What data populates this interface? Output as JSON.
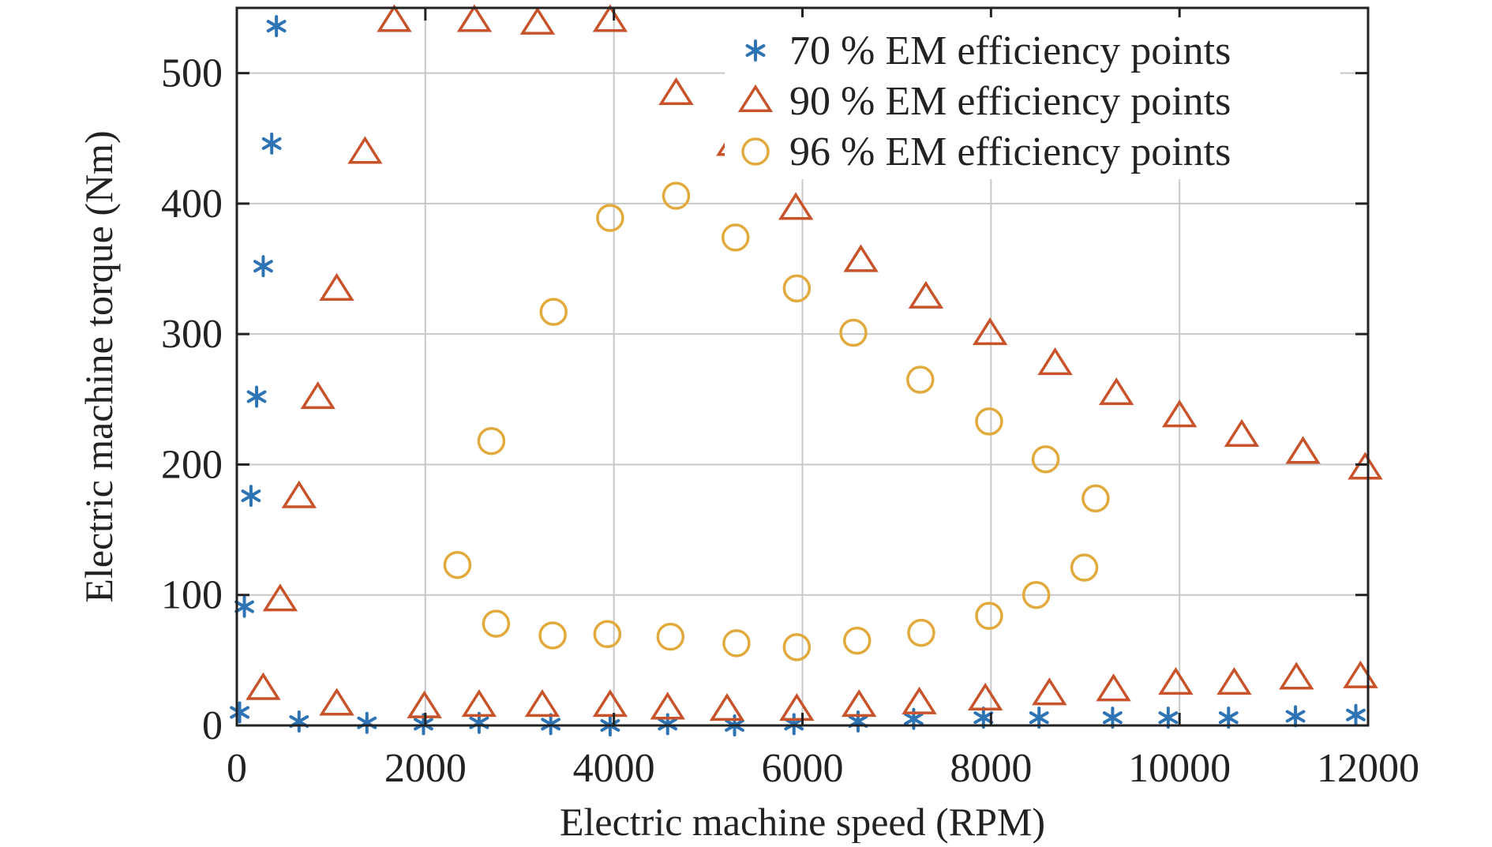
{
  "chart_data": {
    "type": "scatter",
    "xlabel": "Electric machine speed (RPM)",
    "ylabel": "Electric machine torque (Nm)",
    "xlim": [
      0,
      12000
    ],
    "ylim": [
      0,
      550
    ],
    "xticks": [
      0,
      2000,
      4000,
      6000,
      8000,
      10000,
      12000
    ],
    "yticks": [
      0,
      100,
      200,
      300,
      400,
      500
    ],
    "grid": true,
    "legend_position": "top-right",
    "series": [
      {
        "name": "70 % EM efficiency points",
        "marker": "asterisk",
        "color": "#2e74b5",
        "points": [
          [
            30,
            10
          ],
          [
            80,
            91
          ],
          [
            150,
            176
          ],
          [
            210,
            252
          ],
          [
            280,
            352
          ],
          [
            370,
            446
          ],
          [
            420,
            536
          ],
          [
            660,
            3
          ],
          [
            1380,
            2
          ],
          [
            1980,
            1
          ],
          [
            2570,
            2
          ],
          [
            3330,
            1
          ],
          [
            3960,
            0
          ],
          [
            4570,
            1
          ],
          [
            5280,
            0
          ],
          [
            5910,
            1
          ],
          [
            6590,
            3
          ],
          [
            7180,
            5
          ],
          [
            7920,
            6
          ],
          [
            8510,
            6
          ],
          [
            9290,
            6
          ],
          [
            9880,
            6
          ],
          [
            10520,
            6
          ],
          [
            11230,
            7
          ],
          [
            11870,
            8
          ]
        ]
      },
      {
        "name": "90 % EM efficiency points",
        "marker": "triangle",
        "color": "#c8532b",
        "points": [
          [
            280,
            28
          ],
          [
            460,
            96
          ],
          [
            660,
            175
          ],
          [
            860,
            251
          ],
          [
            1060,
            334
          ],
          [
            1360,
            439
          ],
          [
            1670,
            540
          ],
          [
            1060,
            16
          ],
          [
            1990,
            14
          ],
          [
            2570,
            15
          ],
          [
            3240,
            15
          ],
          [
            3960,
            15
          ],
          [
            4570,
            13
          ],
          [
            5200,
            12
          ],
          [
            5940,
            12
          ],
          [
            6600,
            15
          ],
          [
            7240,
            17
          ],
          [
            7940,
            20
          ],
          [
            8620,
            24
          ],
          [
            9300,
            27
          ],
          [
            9960,
            32
          ],
          [
            10580,
            32
          ],
          [
            11240,
            36
          ],
          [
            11920,
            37
          ],
          [
            2520,
            540
          ],
          [
            3190,
            538
          ],
          [
            3960,
            540
          ],
          [
            4660,
            484
          ],
          [
            5270,
            445
          ],
          [
            5930,
            396
          ],
          [
            6620,
            356
          ],
          [
            7310,
            328
          ],
          [
            7990,
            300
          ],
          [
            8680,
            277
          ],
          [
            9330,
            254
          ],
          [
            10000,
            237
          ],
          [
            10660,
            222
          ],
          [
            11310,
            209
          ],
          [
            11970,
            197
          ]
        ]
      },
      {
        "name": "96 % EM efficiency points",
        "marker": "circle",
        "color": "#e2a93c",
        "points": [
          [
            2340,
            123
          ],
          [
            2700,
            218
          ],
          [
            3360,
            317
          ],
          [
            3960,
            389
          ],
          [
            4660,
            406
          ],
          [
            5290,
            374
          ],
          [
            5940,
            335
          ],
          [
            6540,
            301
          ],
          [
            7250,
            265
          ],
          [
            7980,
            233
          ],
          [
            8580,
            204
          ],
          [
            9110,
            174
          ],
          [
            8990,
            121
          ],
          [
            8480,
            100
          ],
          [
            7980,
            84
          ],
          [
            7260,
            71
          ],
          [
            6580,
            65
          ],
          [
            5940,
            60
          ],
          [
            5300,
            63
          ],
          [
            4600,
            68
          ],
          [
            3930,
            70
          ],
          [
            3350,
            69
          ],
          [
            2750,
            78
          ]
        ]
      }
    ]
  }
}
